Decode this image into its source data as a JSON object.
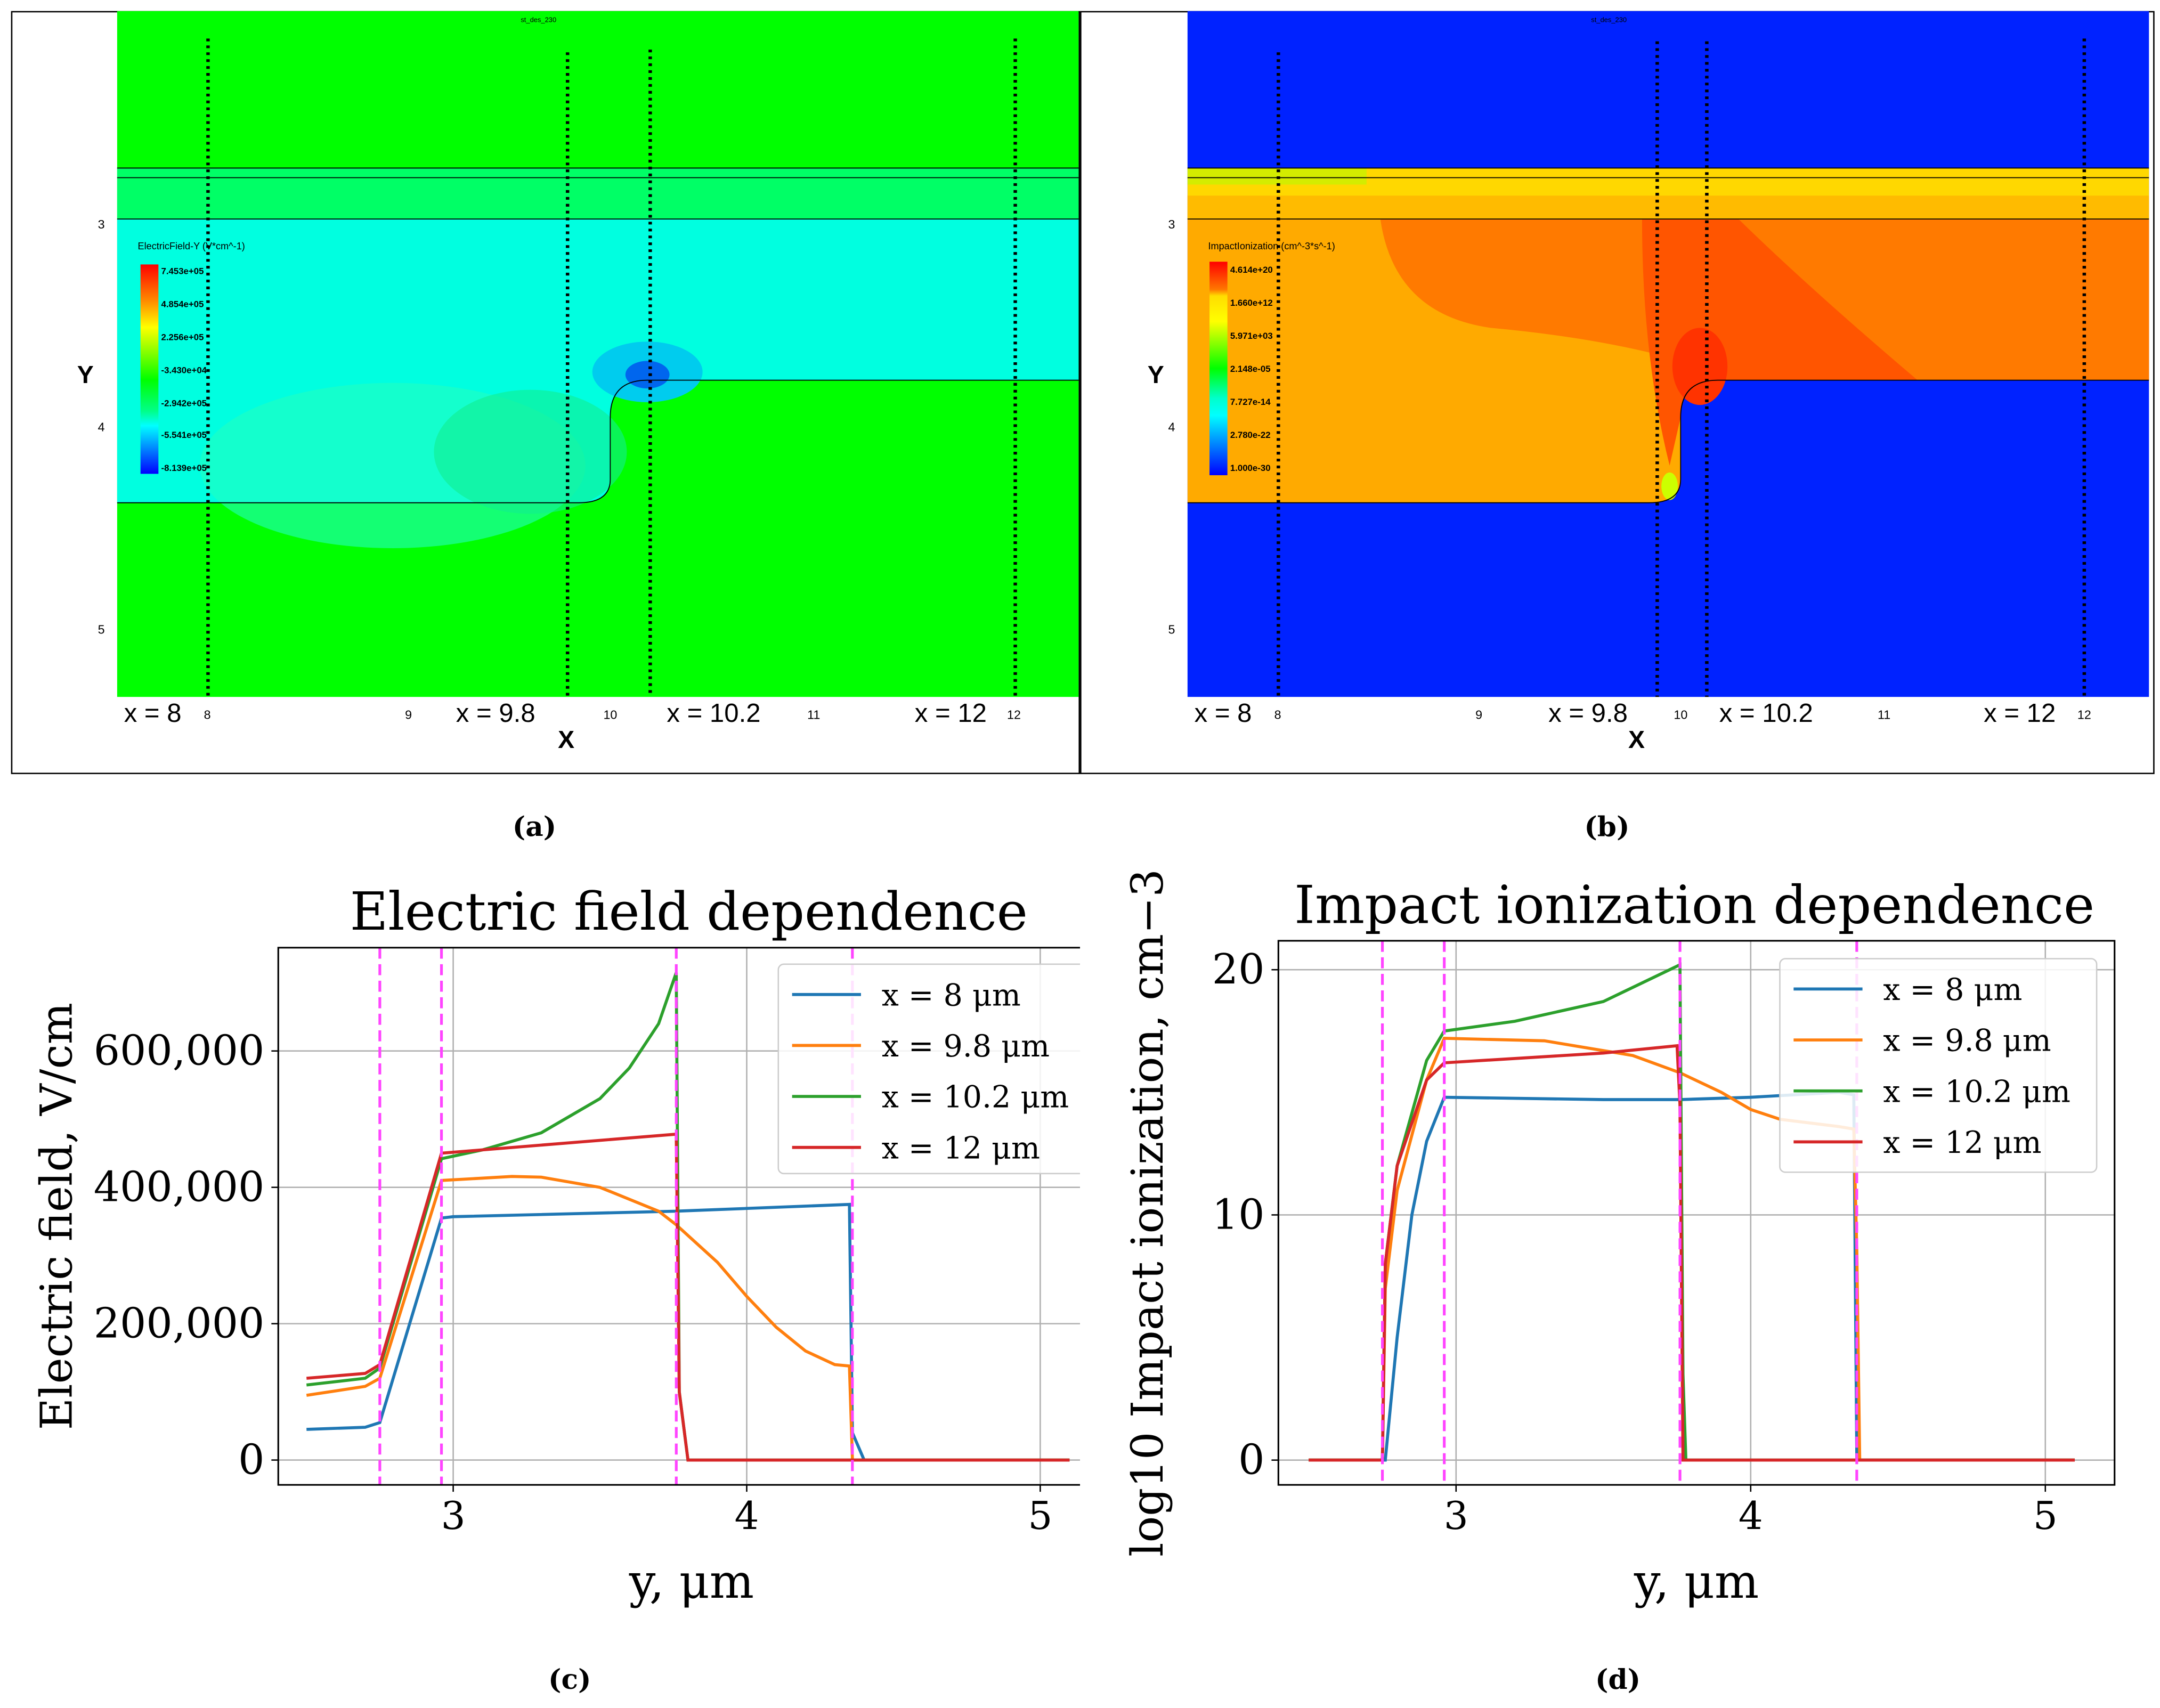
{
  "panel_a": {
    "sim_title": "st_des_230",
    "legend_title": "ElectricField-Y (V*cm^-1)",
    "legend_values": [
      "7.453e+05",
      "4.854e+05",
      "2.256e+05",
      "-3.430e+04",
      "-2.942e+05",
      "-5.541e+05",
      "-8.139e+05"
    ],
    "y_axis_label": "Y",
    "x_axis_label": "X",
    "y_ticks": [
      "3",
      "4",
      "5"
    ],
    "x_ticks": [
      "8",
      "9",
      "10",
      "11",
      "12"
    ],
    "cut_labels": [
      "x = 8",
      "x = 9.8",
      "x = 10.2",
      "x = 12"
    ],
    "caption": "(a)"
  },
  "panel_b": {
    "sim_title": "st_des_230",
    "legend_title": "ImpactIonization (cm^-3*s^-1)",
    "legend_values": [
      "4.614e+20",
      "1.660e+12",
      "5.971e+03",
      "2.148e-05",
      "7.727e-14",
      "2.780e-22",
      "1.000e-30"
    ],
    "y_axis_label": "Y",
    "x_axis_label": "X",
    "y_ticks": [
      "3",
      "4",
      "5"
    ],
    "x_ticks": [
      "8",
      "9",
      "10",
      "11",
      "12"
    ],
    "cut_labels": [
      "x = 8",
      "x = 9.8",
      "x = 10.2",
      "x = 12"
    ],
    "caption": "(b)"
  },
  "captions": {
    "c": "(c)",
    "d": "(d)"
  },
  "colors": {
    "blue": "#1f77b4",
    "orange": "#ff7f0e",
    "green": "#2ca02c",
    "red": "#d62728",
    "magenta": "#ff44ff"
  },
  "chart_data": [
    {
      "type": "line",
      "title": "Electric field dependence",
      "xlabel": "y, μm",
      "ylabel": "Electric field, V/cm",
      "xlim": [
        2.404,
        5.22
      ],
      "ylim": [
        -36400,
        751500
      ],
      "xticks": [
        3,
        4,
        5
      ],
      "xtick_labels": [
        "3",
        "4",
        "5"
      ],
      "yticks": [
        0,
        200000,
        400000,
        600000
      ],
      "ytick_labels": [
        "0",
        "200,000",
        "400,000",
        "600,000"
      ],
      "grid": true,
      "legend_position": "top-right",
      "vlines": [
        2.75,
        2.96,
        3.76,
        4.36
      ],
      "series": [
        {
          "name": "x = 8 μm",
          "color": "#1f77b4",
          "x": [
            2.5,
            2.7,
            2.75,
            2.96,
            3.0,
            3.76,
            4.35,
            4.36,
            4.4,
            5.1
          ],
          "y": [
            45000,
            48000,
            55000,
            355000,
            357000,
            365000,
            375000,
            40000,
            0,
            0
          ]
        },
        {
          "name": "x = 9.8 μm",
          "color": "#ff7f0e",
          "x": [
            2.5,
            2.7,
            2.75,
            2.96,
            3.2,
            3.3,
            3.5,
            3.7,
            3.76,
            3.9,
            4.0,
            4.1,
            4.2,
            4.3,
            4.35,
            4.36,
            5.1
          ],
          "y": [
            95000,
            108000,
            120000,
            410000,
            416000,
            415000,
            400000,
            365000,
            345000,
            290000,
            240000,
            195000,
            160000,
            140000,
            138000,
            0,
            0
          ]
        },
        {
          "name": "x = 10.2 μm",
          "color": "#2ca02c",
          "x": [
            2.5,
            2.7,
            2.75,
            2.96,
            3.1,
            3.3,
            3.5,
            3.6,
            3.7,
            3.76,
            3.77,
            3.8,
            5.1
          ],
          "y": [
            110000,
            120000,
            135000,
            442000,
            455000,
            480000,
            530000,
            575000,
            640000,
            715000,
            100000,
            0,
            0
          ]
        },
        {
          "name": "x = 12 μm",
          "color": "#d62728",
          "x": [
            2.5,
            2.7,
            2.75,
            2.96,
            3.76,
            3.77,
            3.8,
            5.1
          ],
          "y": [
            120000,
            127000,
            140000,
            450000,
            478000,
            100000,
            0,
            0
          ]
        }
      ]
    },
    {
      "type": "line",
      "title": "Impact ionization dependence",
      "xlabel": "y, μm",
      "ylabel": "log10 Impact ionization, cm−3",
      "xlim": [
        2.397,
        5.235
      ],
      "ylim": [
        -1.01,
        21.18
      ],
      "xticks": [
        3,
        4,
        5
      ],
      "xtick_labels": [
        "3",
        "4",
        "5"
      ],
      "yticks": [
        0,
        10,
        20
      ],
      "ytick_labels": [
        "0",
        "10",
        "20"
      ],
      "grid": true,
      "legend_position": "top-right",
      "vlines": [
        2.75,
        2.96,
        3.76,
        4.36
      ],
      "series": [
        {
          "name": "x = 8 μm",
          "color": "#1f77b4",
          "x": [
            2.5,
            2.76,
            2.8,
            2.85,
            2.9,
            2.96,
            3.5,
            3.76,
            4.0,
            4.3,
            4.35,
            4.36,
            5.1
          ],
          "y": [
            0,
            0,
            5,
            10,
            13,
            14.8,
            14.7,
            14.7,
            14.8,
            15,
            14.9,
            0,
            0
          ]
        },
        {
          "name": "x = 9.8 μm",
          "color": "#ff7f0e",
          "x": [
            2.5,
            2.75,
            2.76,
            2.8,
            2.9,
            2.96,
            3.3,
            3.6,
            3.76,
            3.9,
            4.0,
            4.1,
            4.3,
            4.35,
            4.36,
            4.37,
            5.1
          ],
          "y": [
            0,
            0,
            7,
            11,
            15.5,
            17.2,
            17.1,
            16.5,
            15.8,
            15,
            14.3,
            13.9,
            13.6,
            13.5,
            8.5,
            0,
            0
          ]
        },
        {
          "name": "x = 10.2 μm",
          "color": "#2ca02c",
          "x": [
            2.5,
            2.75,
            2.76,
            2.8,
            2.9,
            2.96,
            3.2,
            3.5,
            3.76,
            3.77,
            3.78,
            5.1
          ],
          "y": [
            0,
            0,
            8,
            12,
            16.3,
            17.5,
            17.9,
            18.7,
            20.2,
            3.5,
            0,
            0
          ]
        },
        {
          "name": "x = 12 μm",
          "color": "#d62728",
          "x": [
            2.5,
            2.75,
            2.76,
            2.8,
            2.9,
            2.96,
            3.5,
            3.75,
            3.76,
            3.77,
            5.1
          ],
          "y": [
            0,
            0,
            8,
            12,
            15.5,
            16.2,
            16.6,
            16.9,
            14.5,
            0,
            0
          ]
        }
      ]
    }
  ]
}
